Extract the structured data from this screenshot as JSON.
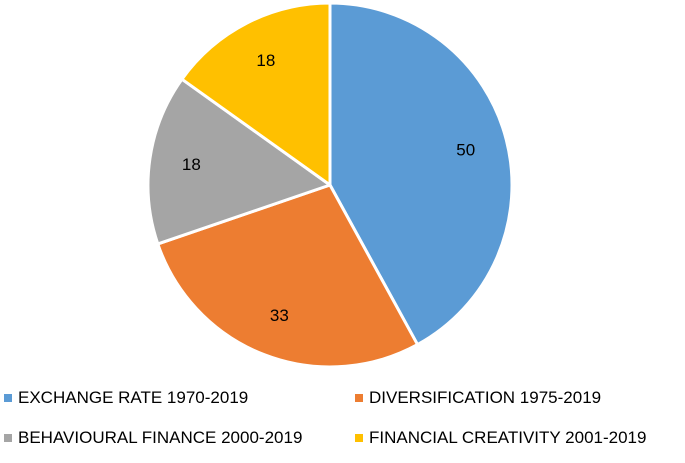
{
  "chart_data": {
    "type": "pie",
    "categories": [
      "EXCHANGE RATE 1970-2019",
      "DIVERSIFICATION 1975-2019",
      "BEHAVIOURAL FINANCE 2000-2019",
      "FINANCIAL CREATIVITY 2001-2019"
    ],
    "values": [
      50,
      33,
      18,
      18
    ],
    "colors": [
      "#5B9BD5",
      "#ED7D31",
      "#A5A5A5",
      "#FFC000"
    ],
    "legend_position": "bottom",
    "start_angle": "12 o'clock, clockwise"
  }
}
